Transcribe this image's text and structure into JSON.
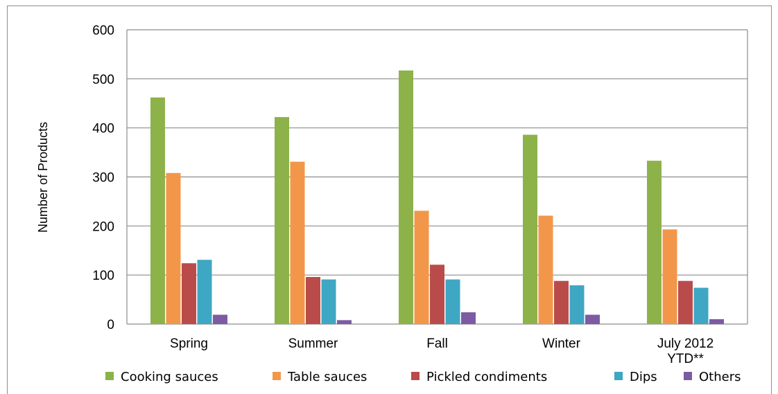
{
  "chart_data": {
    "type": "bar",
    "title": "",
    "xlabel": "",
    "ylabel": "Number of Products",
    "ylim": [
      0,
      600
    ],
    "yticks": [
      0,
      100,
      200,
      300,
      400,
      500,
      600
    ],
    "grid": true,
    "legend_position": "bottom",
    "categories": [
      "Spring",
      "Summer",
      "Fall",
      "Winter",
      "July 2012\nYTD**"
    ],
    "series": [
      {
        "name": "Cooking sauces",
        "color": "#8db24a",
        "values": [
          462,
          422,
          517,
          386,
          333
        ]
      },
      {
        "name": "Table sauces",
        "color": "#f2974a",
        "values": [
          308,
          331,
          231,
          221,
          193
        ]
      },
      {
        "name": "Pickled condiments",
        "color": "#b94c4a",
        "values": [
          124,
          96,
          121,
          88,
          88
        ]
      },
      {
        "name": "Dips",
        "color": "#3ea7c3",
        "values": [
          131,
          91,
          91,
          79,
          74
        ]
      },
      {
        "name": "Others",
        "color": "#7c5ba3",
        "values": [
          19,
          8,
          24,
          19,
          10
        ]
      }
    ]
  }
}
